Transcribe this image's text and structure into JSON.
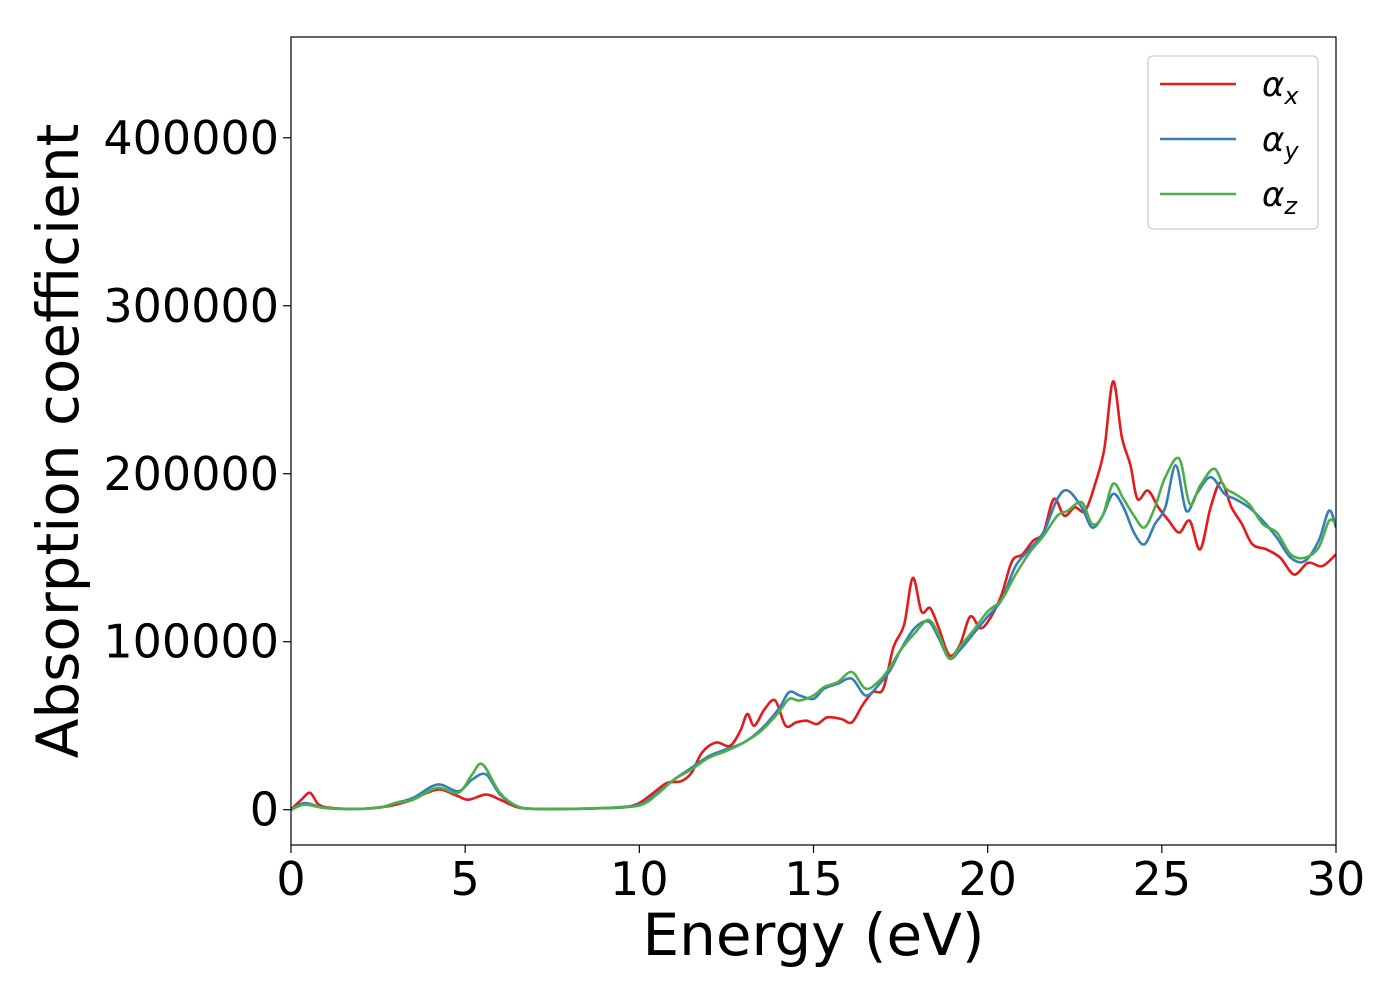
{
  "chart_data": {
    "type": "line",
    "title": "",
    "xlabel": "Energy (eV)",
    "ylabel": "Absorption coefficient",
    "xlim": [
      0,
      30
    ],
    "ylim": [
      -21000,
      460000
    ],
    "xticks": [
      0,
      5,
      10,
      15,
      20,
      25,
      30
    ],
    "xtick_labels": [
      "0",
      "5",
      "10",
      "15",
      "20",
      "25",
      "30"
    ],
    "yticks": [
      0,
      100000,
      200000,
      300000,
      400000
    ],
    "ytick_labels": [
      "0",
      "100000",
      "200000",
      "300000",
      "400000"
    ],
    "grid": false,
    "legend_placement": "top-right",
    "series": [
      {
        "name": "αx",
        "symbol": "α",
        "subscript": "x",
        "color": "#e41a1c",
        "x": [
          0,
          0.3,
          0.55,
          0.8,
          1.2,
          2,
          2.6,
          3,
          3.5,
          3.9,
          4.3,
          4.8,
          5.1,
          5.6,
          6,
          6.5,
          7,
          8,
          9,
          9.6,
          10,
          10.4,
          10.8,
          11.2,
          11.5,
          11.8,
          12.2,
          12.6,
          12.9,
          13.1,
          13.3,
          13.6,
          13.9,
          14.2,
          14.5,
          14.8,
          15.1,
          15.4,
          15.8,
          16.1,
          16.4,
          16.7,
          17,
          17.3,
          17.6,
          17.85,
          18.1,
          18.35,
          18.6,
          18.9,
          19.2,
          19.5,
          19.8,
          20.1,
          20.4,
          20.7,
          21,
          21.3,
          21.6,
          21.9,
          22.2,
          22.5,
          22.8,
          23.1,
          23.35,
          23.6,
          23.85,
          24.1,
          24.3,
          24.6,
          24.9,
          25.2,
          25.5,
          25.8,
          26.1,
          26.4,
          26.7,
          27,
          27.3,
          27.6,
          28,
          28.4,
          28.8,
          29.2,
          29.6,
          30
        ],
        "y": [
          0,
          6000,
          10000,
          3000,
          1000,
          500,
          1500,
          3000,
          6000,
          10000,
          12000,
          8000,
          6000,
          9000,
          6000,
          1500,
          500,
          500,
          1000,
          1500,
          4000,
          10000,
          16000,
          17000,
          22000,
          34000,
          40000,
          38000,
          47000,
          57000,
          50000,
          60000,
          65000,
          50000,
          52000,
          53000,
          51000,
          55000,
          54000,
          52000,
          62000,
          70000,
          72000,
          97000,
          110000,
          138000,
          118000,
          120000,
          108000,
          92000,
          98000,
          115000,
          108000,
          115000,
          128000,
          148000,
          152000,
          160000,
          165000,
          185000,
          175000,
          180000,
          178000,
          195000,
          215000,
          255000,
          222000,
          205000,
          185000,
          190000,
          180000,
          172000,
          165000,
          172000,
          155000,
          180000,
          195000,
          180000,
          170000,
          158000,
          155000,
          150000,
          140000,
          147000,
          145000,
          152000
        ]
      },
      {
        "name": "αy",
        "symbol": "α",
        "subscript": "y",
        "color": "#377eb8",
        "x": [
          0,
          0.4,
          1,
          2,
          2.6,
          3,
          3.5,
          4.2,
          4.8,
          5.2,
          5.6,
          6,
          6.5,
          7,
          8,
          9,
          10,
          10.5,
          11,
          11.5,
          12,
          12.5,
          13,
          13.5,
          14,
          14.3,
          14.6,
          15,
          15.3,
          15.7,
          16.1,
          16.5,
          16.9,
          17.2,
          17.5,
          17.9,
          18.3,
          18.6,
          18.9,
          19.2,
          19.6,
          20,
          20.4,
          20.8,
          21.2,
          21.6,
          22,
          22.3,
          22.7,
          23,
          23.3,
          23.6,
          23.9,
          24.2,
          24.5,
          24.8,
          25.1,
          25.4,
          25.7,
          26,
          26.4,
          26.8,
          27.1,
          27.5,
          27.9,
          28.3,
          28.7,
          29.1,
          29.5,
          29.8,
          30
        ],
        "y": [
          0,
          4000,
          1000,
          500,
          1500,
          4000,
          7000,
          15000,
          11000,
          18000,
          21000,
          9000,
          2000,
          500,
          500,
          1000,
          3000,
          10000,
          18000,
          25000,
          32000,
          36000,
          40000,
          48000,
          60000,
          70000,
          68000,
          66000,
          72000,
          75000,
          78000,
          68000,
          75000,
          83000,
          95000,
          108000,
          112000,
          102000,
          90000,
          95000,
          105000,
          115000,
          125000,
          145000,
          155000,
          165000,
          185000,
          190000,
          180000,
          168000,
          175000,
          188000,
          180000,
          165000,
          158000,
          170000,
          180000,
          205000,
          178000,
          188000,
          198000,
          188000,
          185000,
          180000,
          172000,
          162000,
          150000,
          148000,
          160000,
          178000,
          168000
        ]
      },
      {
        "name": "αz",
        "symbol": "α",
        "subscript": "z",
        "color": "#4daf4a",
        "x": [
          0,
          0.4,
          1,
          2,
          2.6,
          3,
          3.5,
          4.2,
          4.8,
          5.2,
          5.5,
          6,
          6.5,
          7,
          8,
          9,
          10,
          10.5,
          11,
          11.5,
          12,
          12.5,
          13,
          13.5,
          14,
          14.3,
          14.6,
          15,
          15.3,
          15.7,
          16.1,
          16.5,
          16.9,
          17.2,
          17.5,
          17.9,
          18.3,
          18.6,
          18.9,
          19.2,
          19.6,
          20,
          20.4,
          20.8,
          21.2,
          21.6,
          22,
          22.3,
          22.7,
          23,
          23.3,
          23.6,
          23.9,
          24.2,
          24.5,
          24.8,
          25.1,
          25.5,
          25.8,
          26.1,
          26.5,
          26.8,
          27.1,
          27.5,
          27.9,
          28.3,
          28.7,
          29.1,
          29.5,
          29.8,
          30
        ],
        "y": [
          0,
          3000,
          1000,
          500,
          1500,
          4000,
          6000,
          13000,
          10000,
          21000,
          27000,
          10000,
          2000,
          500,
          500,
          1000,
          2500,
          9000,
          18000,
          24000,
          31000,
          35000,
          40000,
          47000,
          58000,
          66000,
          65000,
          68000,
          73000,
          76000,
          82000,
          72000,
          77000,
          85000,
          95000,
          105000,
          113000,
          104000,
          90000,
          97000,
          107000,
          118000,
          125000,
          140000,
          153000,
          163000,
          175000,
          178000,
          183000,
          170000,
          175000,
          194000,
          185000,
          175000,
          168000,
          180000,
          198000,
          209000,
          182000,
          193000,
          203000,
          192000,
          188000,
          182000,
          170000,
          165000,
          152000,
          150000,
          156000,
          172000,
          170000
        ]
      }
    ]
  }
}
